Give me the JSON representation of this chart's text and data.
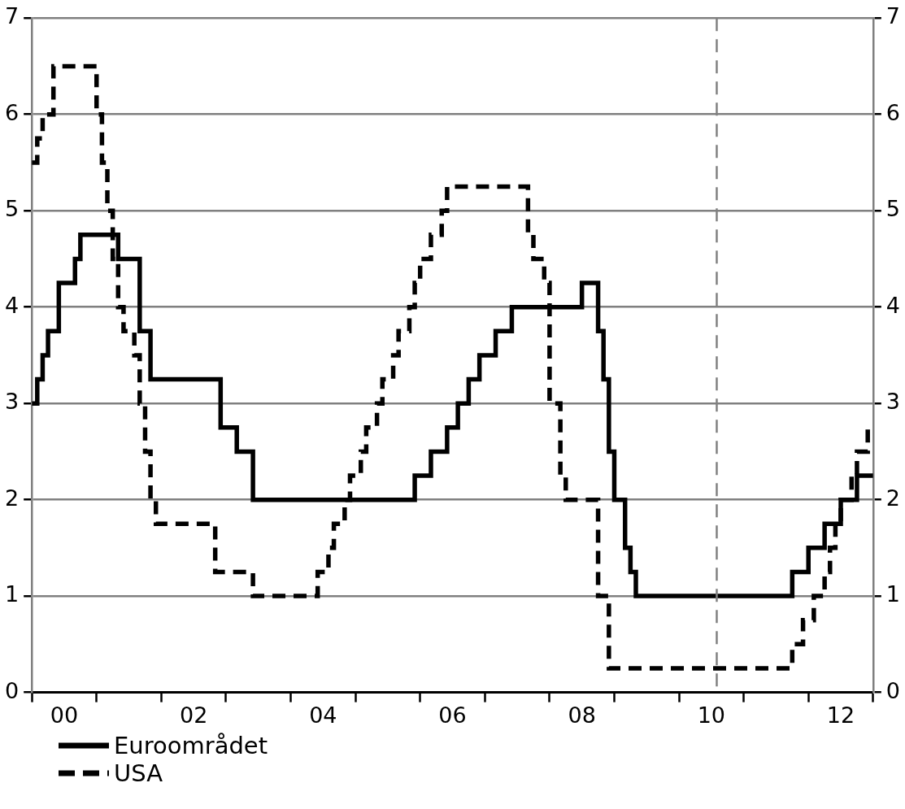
{
  "chart_data": {
    "type": "step",
    "x": [
      "2000-01",
      "2000-02",
      "2000-03",
      "2000-04",
      "2000-06",
      "2000-09",
      "2000-10",
      "2001-05",
      "2001-09",
      "2001-11",
      "2002-12",
      "2003-03",
      "2003-06",
      "2005-12",
      "2006-03",
      "2006-06",
      "2006-08",
      "2006-10",
      "2006-12",
      "2007-03",
      "2007-06",
      "2008-07",
      "2008-10",
      "2008-11",
      "2008-12",
      "2009-01",
      "2009-03",
      "2009-04",
      "2009-05",
      "2011-10",
      "2012-01",
      "2012-04",
      "2012-07",
      "2012-10",
      "2013-01"
    ],
    "series": [
      {
        "name": "Euroområdet",
        "color": "#000000",
        "line_style": "solid",
        "values": [
          3.0,
          3.25,
          3.5,
          3.75,
          4.25,
          4.5,
          4.75,
          4.5,
          3.75,
          3.25,
          2.75,
          2.5,
          2.0,
          2.25,
          2.5,
          2.75,
          3.0,
          3.25,
          3.5,
          3.75,
          4.0,
          4.25,
          3.75,
          3.25,
          2.5,
          2.0,
          1.5,
          1.25,
          1.0,
          1.25,
          1.5,
          1.75,
          2.0,
          2.25,
          2.25
        ]
      },
      {
        "name": "USA",
        "color": "#000000",
        "line_style": "dashed",
        "x": [
          "2000-01",
          "2000-02",
          "2000-03",
          "2000-05",
          "2001-01",
          "2001-02",
          "2001-03",
          "2001-04",
          "2001-05",
          "2001-06",
          "2001-08",
          "2001-09",
          "2001-10",
          "2001-11",
          "2001-12",
          "2002-11",
          "2003-06",
          "2004-06",
          "2004-08",
          "2004-09",
          "2004-11",
          "2004-12",
          "2005-02",
          "2005-03",
          "2005-05",
          "2005-06",
          "2005-08",
          "2005-09",
          "2005-11",
          "2005-12",
          "2006-01",
          "2006-03",
          "2006-05",
          "2006-06",
          "2007-09",
          "2007-10",
          "2007-12",
          "2008-01",
          "2008-03",
          "2008-04",
          "2008-10",
          "2008-12",
          "2011-10",
          "2011-12",
          "2012-02",
          "2012-04",
          "2012-05",
          "2012-06",
          "2012-07",
          "2012-09",
          "2012-10",
          "2012-12",
          "2013-01"
        ],
        "values": [
          5.5,
          5.75,
          6.0,
          6.5,
          6.0,
          5.5,
          5.0,
          4.5,
          4.0,
          3.75,
          3.5,
          3.0,
          2.5,
          2.0,
          1.75,
          1.25,
          1.0,
          1.25,
          1.5,
          1.75,
          2.0,
          2.25,
          2.5,
          2.75,
          3.0,
          3.25,
          3.5,
          3.75,
          4.0,
          4.25,
          4.5,
          4.75,
          5.0,
          5.25,
          4.75,
          4.5,
          4.25,
          3.0,
          2.25,
          2.0,
          1.0,
          0.25,
          0.5,
          0.75,
          1.0,
          1.25,
          1.5,
          1.75,
          2.0,
          2.25,
          2.5,
          2.75,
          2.75
        ]
      }
    ],
    "xlim": [
      "2000-01",
      "2013-01"
    ],
    "xticks": [
      {
        "value": "2000-01",
        "label": null
      },
      {
        "value": "2000-07",
        "label": "00"
      },
      {
        "value": "2001-01",
        "label": null
      },
      {
        "value": "2002-01",
        "label": null
      },
      {
        "value": "2002-07",
        "label": "02"
      },
      {
        "value": "2003-01",
        "label": null
      },
      {
        "value": "2004-01",
        "label": null
      },
      {
        "value": "2004-07",
        "label": "04"
      },
      {
        "value": "2005-01",
        "label": null
      },
      {
        "value": "2006-01",
        "label": null
      },
      {
        "value": "2006-07",
        "label": "06"
      },
      {
        "value": "2007-01",
        "label": null
      },
      {
        "value": "2008-01",
        "label": null
      },
      {
        "value": "2008-07",
        "label": "08"
      },
      {
        "value": "2009-01",
        "label": null
      },
      {
        "value": "2010-01",
        "label": null
      },
      {
        "value": "2010-07",
        "label": "10"
      },
      {
        "value": "2011-01",
        "label": null
      },
      {
        "value": "2012-01",
        "label": null
      },
      {
        "value": "2012-07",
        "label": "12"
      },
      {
        "value": "2013-01",
        "label": null
      }
    ],
    "ylim": [
      0,
      7
    ],
    "yticks": [
      0,
      1,
      2,
      3,
      4,
      5,
      6,
      7
    ],
    "y2lim": [
      0,
      7
    ],
    "y2ticks": [
      0,
      1,
      2,
      3,
      4,
      5,
      6,
      7
    ],
    "ref_lines": [
      {
        "axis": "x",
        "value": "2010-08",
        "color": "#808080",
        "line_style": "dashed"
      }
    ],
    "grid": "y",
    "legend": "bottom left"
  }
}
